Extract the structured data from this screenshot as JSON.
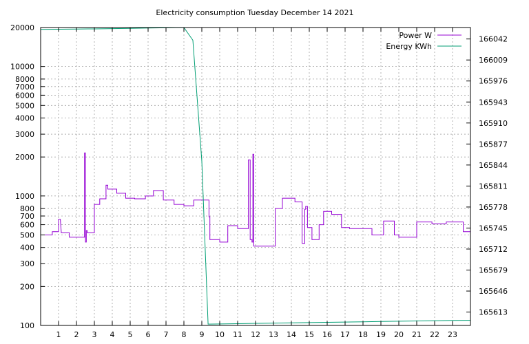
{
  "chart_data": {
    "type": "line",
    "title": "Electricity consumption Tuesday December 14 2021",
    "xlabel": "",
    "ylabel": "",
    "x_ticks": [
      1,
      2,
      3,
      4,
      5,
      6,
      7,
      8,
      9,
      10,
      11,
      12,
      13,
      14,
      15,
      16,
      17,
      18,
      19,
      20,
      21,
      22,
      23
    ],
    "xlim": [
      0,
      24
    ],
    "grid": true,
    "legend_position": "top-right",
    "y_axis_left": {
      "scale": "log",
      "range": [
        100,
        20000
      ],
      "ticks": [
        100,
        200,
        300,
        400,
        500,
        600,
        700,
        800,
        1000,
        2000,
        3000,
        4000,
        5000,
        6000,
        7000,
        8000,
        10000,
        20000
      ],
      "tick_labels": [
        "100",
        "200",
        "300",
        "400",
        "500",
        "600",
        "700",
        "800",
        "1000",
        "2000",
        "3000",
        "4000",
        "5000",
        "6000",
        "7000",
        "8000",
        "10000",
        "20000"
      ]
    },
    "y_axis_right": {
      "scale": "linear",
      "range": [
        165592,
        166060
      ],
      "ticks": [
        165613,
        165646,
        165679,
        165712,
        165745,
        165778,
        165811,
        165844,
        165877,
        165910,
        165943,
        165976,
        166009,
        166042
      ],
      "tick_labels": [
        "165613",
        "165646",
        "165679",
        "165712",
        "165745",
        "165778",
        "165811",
        "165844",
        "165877",
        "165910",
        "165943",
        "165976",
        "166009",
        "166042"
      ]
    },
    "series": [
      {
        "name": "Power W",
        "axis": "left",
        "color": "#9400d3",
        "x": [
          0,
          0.65,
          0.65,
          1.0,
          1.0,
          1.1,
          1.15,
          1.15,
          1.6,
          1.6,
          2.45,
          2.45,
          2.5,
          2.5,
          2.55,
          2.55,
          2.6,
          2.6,
          3.0,
          3.0,
          3.3,
          3.3,
          3.65,
          3.65,
          3.75,
          3.75,
          4.25,
          4.25,
          4.75,
          4.75,
          5.25,
          5.25,
          5.85,
          5.85,
          6.3,
          6.3,
          6.85,
          6.85,
          7.45,
          7.45,
          8.0,
          8.0,
          8.55,
          8.55,
          9.4,
          9.4,
          9.45,
          9.45,
          10.0,
          10.0,
          10.45,
          10.45,
          11.0,
          11.0,
          11.6,
          11.6,
          11.7,
          11.7,
          11.8,
          11.8,
          11.85,
          11.85,
          11.9,
          11.9,
          12.1,
          12.1,
          12.15,
          12.15,
          12.25,
          12.25,
          13.1,
          13.1,
          13.5,
          13.5,
          14.2,
          14.2,
          14.6,
          14.6,
          14.75,
          14.75,
          14.8,
          14.8,
          14.9,
          14.9,
          15.15,
          15.15,
          15.55,
          15.55,
          15.8,
          15.8,
          16.25,
          16.25,
          16.8,
          16.8,
          17.25,
          17.25,
          18.5,
          18.5,
          19.15,
          19.15,
          19.75,
          19.75,
          20.0,
          20.0,
          21.0,
          21.0,
          21.85,
          21.85,
          22.65,
          22.65,
          23.6,
          23.6,
          24.0
        ],
        "y": [
          500,
          500,
          530,
          530,
          660,
          660,
          530,
          520,
          520,
          480,
          480,
          2150,
          2150,
          440,
          440,
          540,
          540,
          520,
          520,
          860,
          860,
          950,
          950,
          1210,
          1210,
          1130,
          1130,
          1050,
          1050,
          960,
          960,
          950,
          950,
          1000,
          1000,
          1100,
          1100,
          930,
          930,
          860,
          860,
          840,
          840,
          930,
          930,
          690,
          690,
          460,
          460,
          440,
          440,
          590,
          590,
          560,
          560,
          1900,
          1900,
          460,
          460,
          440,
          440,
          2100,
          2100,
          410,
          410,
          410,
          410,
          410,
          410,
          410,
          410,
          800,
          800,
          960,
          960,
          900,
          900,
          430,
          430,
          790,
          790,
          830,
          830,
          570,
          570,
          460,
          460,
          600,
          600,
          760,
          760,
          720,
          720,
          570,
          570,
          560,
          560,
          500,
          500,
          640,
          640,
          500,
          500,
          480,
          480,
          630,
          630,
          610,
          610,
          630,
          630,
          530,
          530
        ]
      },
      {
        "name": "Energy KWh",
        "axis": "right",
        "color": "#009e73",
        "x": [
          0,
          1,
          2,
          3,
          4,
          5,
          6,
          7,
          8,
          8.5,
          9.0,
          9.35,
          10,
          11,
          12,
          13,
          14,
          15,
          16,
          17,
          18,
          19,
          20,
          21,
          22,
          23,
          24
        ],
        "y": [
          166057,
          166057.3,
          166057.6,
          166057.9,
          166058.3,
          166058.7,
          166059.2,
          166059.6,
          166060,
          166040,
          165850,
          165594,
          165594.3,
          165594.7,
          165595.2,
          165595.6,
          165596.0,
          165596.4,
          165596.8,
          165597.3,
          165597.7,
          165598.2,
          165598.6,
          165599.0,
          165599.4,
          165599.8,
          165600
        ]
      }
    ]
  }
}
